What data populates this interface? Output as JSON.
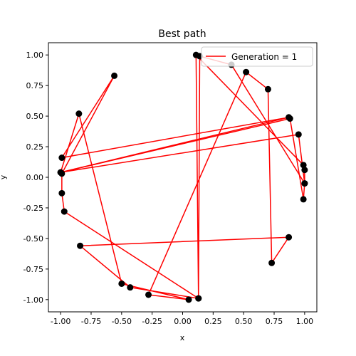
{
  "colors": {
    "path": "#ff0000",
    "points": "#000000",
    "axes": "#000000",
    "background": "#ffffff"
  },
  "chart_data": {
    "type": "line",
    "title": "Best path",
    "xlabel": "x",
    "ylabel": "y",
    "xlim": [
      -1.1,
      1.1
    ],
    "ylim": [
      -1.1,
      1.1
    ],
    "xticks": [
      "-1.00",
      "-0.75",
      "-0.50",
      "-0.25",
      "0.00",
      "0.25",
      "0.50",
      "0.75",
      "1.00"
    ],
    "yticks": [
      "-1.00",
      "-0.75",
      "-0.50",
      "-0.25",
      "0.00",
      "0.25",
      "0.50",
      "0.75",
      "1.00"
    ],
    "xtick_values": [
      -1.0,
      -0.75,
      -0.5,
      -0.25,
      0.0,
      0.25,
      0.5,
      0.75,
      1.0
    ],
    "ytick_values": [
      -1.0,
      -0.75,
      -0.5,
      -0.25,
      0.0,
      0.25,
      0.5,
      0.75,
      1.0
    ],
    "grid": false,
    "legend": {
      "placement": "top-right",
      "entries": [
        "Generation = 1"
      ]
    },
    "series": [
      {
        "name": "Generation = 1",
        "x": [
          -0.85,
          -0.5,
          0.05,
          -0.28,
          0.52,
          0.7,
          0.73,
          0.87,
          -0.84,
          -0.43,
          0.13,
          0.11,
          0.99,
          1.0,
          1.0,
          0.95,
          -1.0,
          0.87,
          -0.99,
          -0.56,
          -0.99,
          -0.99,
          -0.97,
          0.13,
          0.14,
          0.4,
          1.0,
          0.99,
          0.88,
          -1.0,
          -0.85
        ],
        "y": [
          0.52,
          -0.87,
          -1.0,
          -0.96,
          0.86,
          0.72,
          -0.7,
          -0.49,
          -0.56,
          -0.9,
          -0.99,
          1.0,
          0.1,
          0.06,
          -0.05,
          0.35,
          0.04,
          0.49,
          0.16,
          0.83,
          0.03,
          -0.13,
          -0.28,
          -0.99,
          0.99,
          0.92,
          -0.05,
          -0.18,
          0.48,
          0.04,
          0.52
        ]
      }
    ]
  }
}
